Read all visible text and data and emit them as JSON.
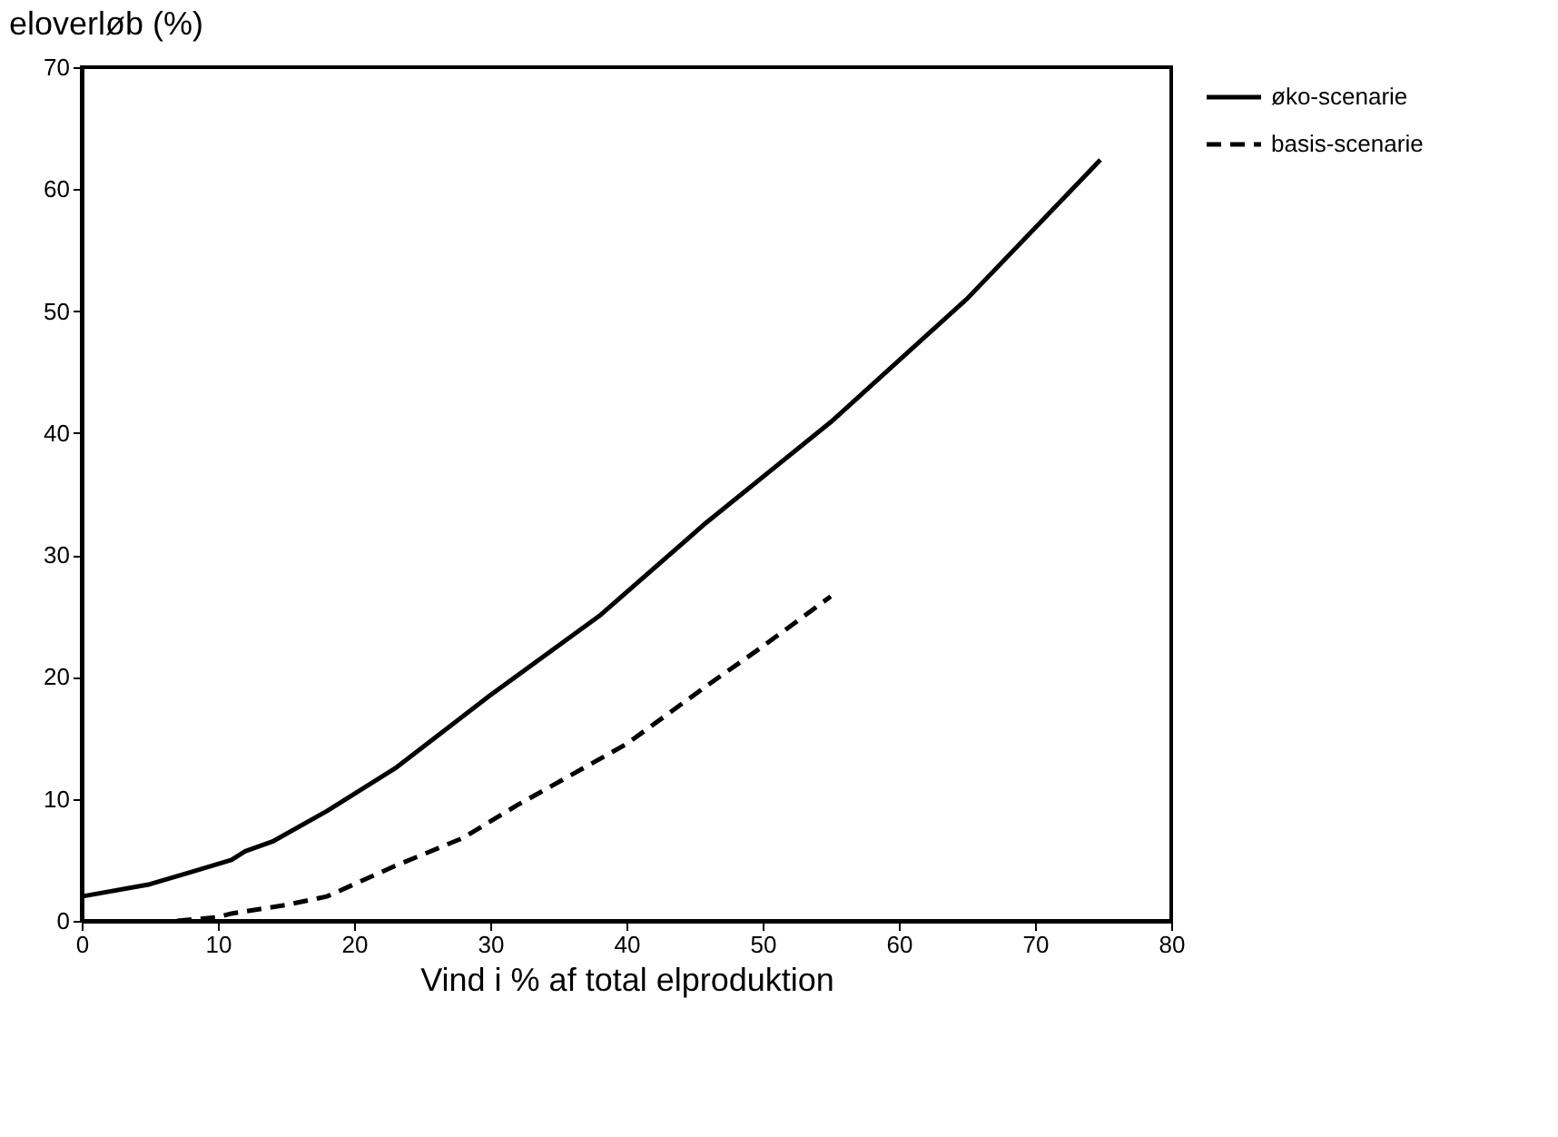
{
  "chart_data": {
    "type": "line",
    "ylabel": "eloverløb (%)",
    "xlabel": "Vind i % af total elproduktion",
    "xlim": [
      0,
      80
    ],
    "xticks": [
      0,
      10,
      20,
      30,
      40,
      50,
      60,
      70,
      80
    ],
    "ylim": [
      0,
      70
    ],
    "yticks": [
      0,
      10,
      20,
      30,
      40,
      50,
      60,
      70
    ],
    "grid": false,
    "legend": "top right",
    "marker": "none",
    "series": [
      {
        "name": "øko-scenarie",
        "color": "#000000",
        "line_style": "solid",
        "x": [
          0,
          5,
          8,
          11,
          12,
          14,
          18,
          23,
          30,
          38,
          45.8,
          55,
          65,
          74.8
        ],
        "values": [
          2,
          3,
          4,
          5,
          5.7,
          6.5,
          9,
          12.5,
          18.5,
          25,
          32.6,
          40.9,
          51,
          62.4
        ]
      },
      {
        "name": "basis-scenarie",
        "color": "#000000",
        "line_style": "dashed",
        "x": [
          7,
          10,
          11,
          15,
          18,
          20,
          23,
          28,
          32,
          36,
          40,
          45.8,
          50,
          55
        ],
        "values": [
          0,
          0.3,
          0.6,
          1.3,
          2,
          3,
          4.5,
          6.8,
          9.5,
          12,
          14.5,
          19.2,
          22.5,
          26.6
        ]
      }
    ]
  }
}
